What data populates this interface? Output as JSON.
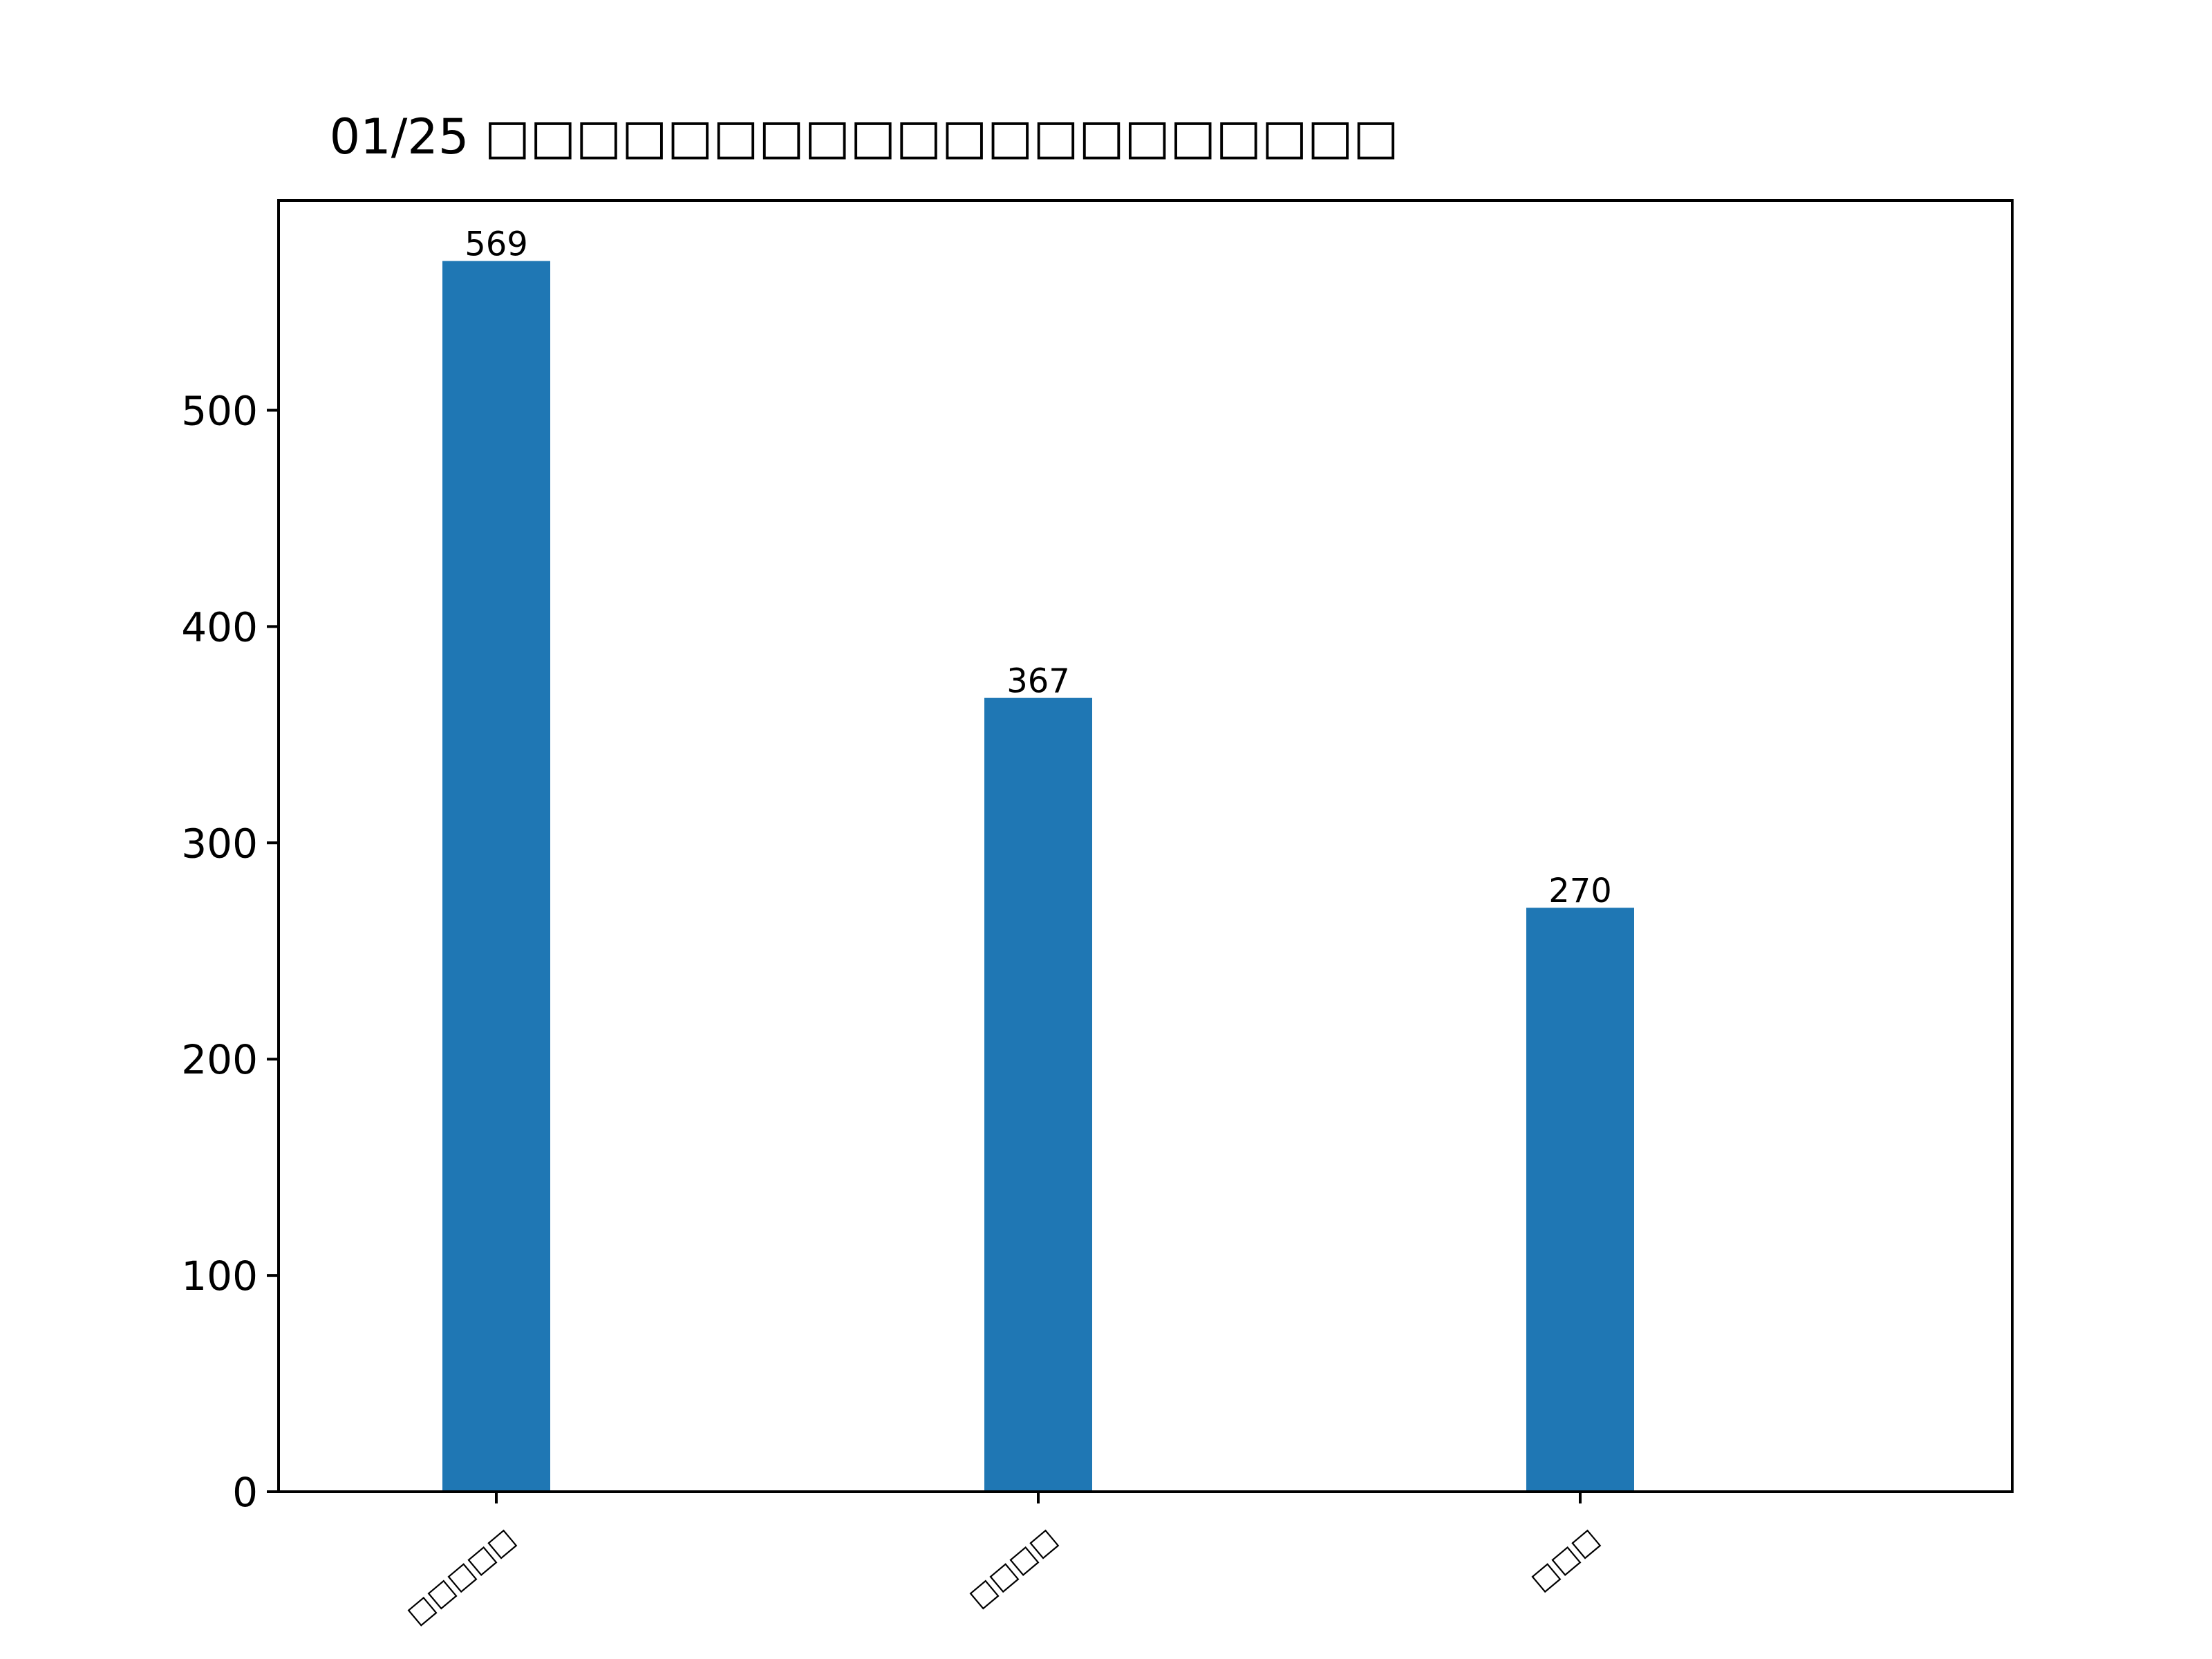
{
  "chart_data": {
    "type": "bar",
    "title": "01/25 □□□□□□□□□□□□□□□□□□□□",
    "xlabel": "",
    "ylabel": "",
    "categories": [
      "□□□□□",
      "□□□□",
      "□□□"
    ],
    "values": [
      569,
      367,
      270
    ],
    "value_labels": [
      "569",
      "367",
      "270"
    ],
    "ylim": [
      0,
      600
    ],
    "yticks": [
      0,
      100,
      200,
      300,
      400,
      500
    ],
    "ytick_labels": [
      "0",
      "100",
      "200",
      "300",
      "400",
      "500"
    ],
    "grid": false,
    "legend": "none",
    "bar_color": "#1f77b4",
    "axis_color": "#000000",
    "background": "#ffffff"
  }
}
